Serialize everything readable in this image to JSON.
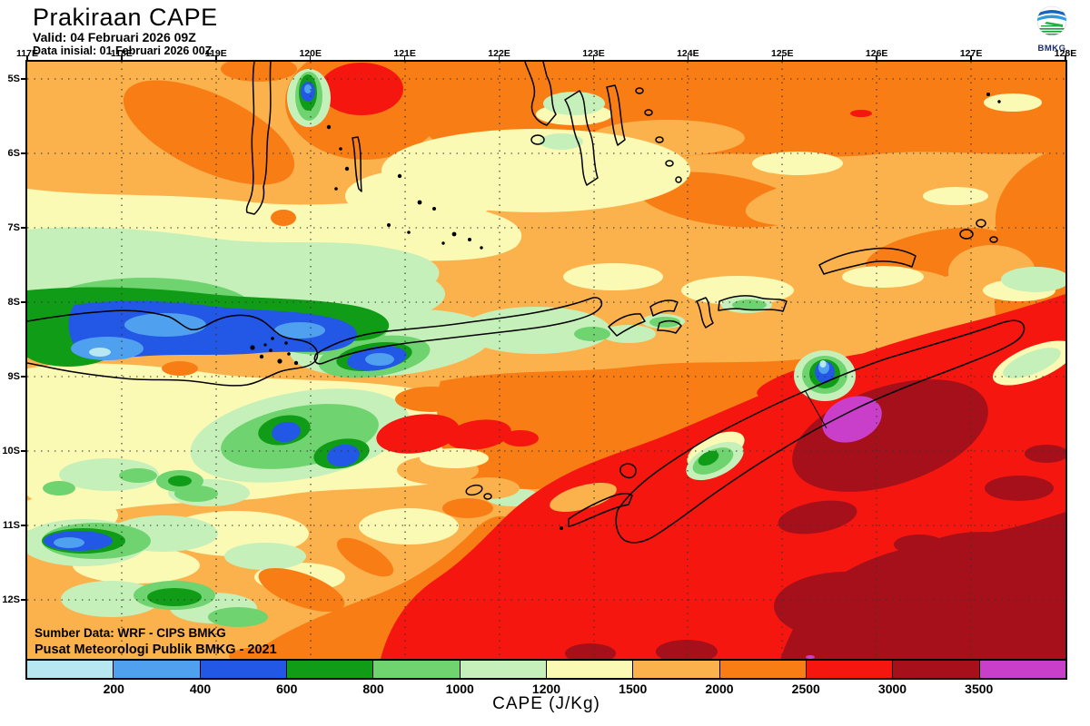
{
  "header": {
    "title": "Prakiraan CAPE",
    "valid_line": "Valid: 04 Februari 2026 09Z",
    "init_line": "Data inisial: 01 Februari 2026 00Z",
    "logo_text": "BMKG"
  },
  "map": {
    "source_line1": "Sumber Data: WRF - CIPS BMKG",
    "source_line2": "Pusat Meteorologi Publik BMKG - 2021",
    "x_axis": {
      "labels": [
        "117E",
        "118E",
        "119E",
        "120E",
        "121E",
        "122E",
        "123E",
        "124E",
        "125E",
        "126E",
        "127E",
        "128E"
      ]
    },
    "y_axis": {
      "labels": [
        "5S",
        "6S",
        "7S",
        "8S",
        "9S",
        "10S",
        "11S",
        "12S"
      ]
    }
  },
  "colorbar": {
    "title": "CAPE (J/Kg)",
    "tick_labels": [
      "200",
      "400",
      "600",
      "800",
      "1000",
      "1200",
      "1500",
      "2000",
      "2500",
      "3000",
      "3500"
    ],
    "segment_colors": [
      "#B7E7F0",
      "#4FA0EF",
      "#2357E5",
      "#109C17",
      "#6FD36F",
      "#C6F0BA",
      "#FBFAB4",
      "#FBB24D",
      "#F97D15",
      "#F5160F",
      "#A6101A",
      "#C93FC9"
    ],
    "palette": {
      "lt200": "#B7E7F0",
      "200-400": "#4FA0EF",
      "400-600": "#2357E5",
      "600-800": "#109C17",
      "800-1000": "#6FD36F",
      "1000-1200": "#C6F0BA",
      "1200-1500": "#FBFAB4",
      "1500-2000": "#FBB24D",
      "2000-2500": "#F97D15",
      "2500-3000": "#F5160F",
      "3000-3500": "#A6101A",
      "gt3500": "#C93FC9"
    }
  }
}
